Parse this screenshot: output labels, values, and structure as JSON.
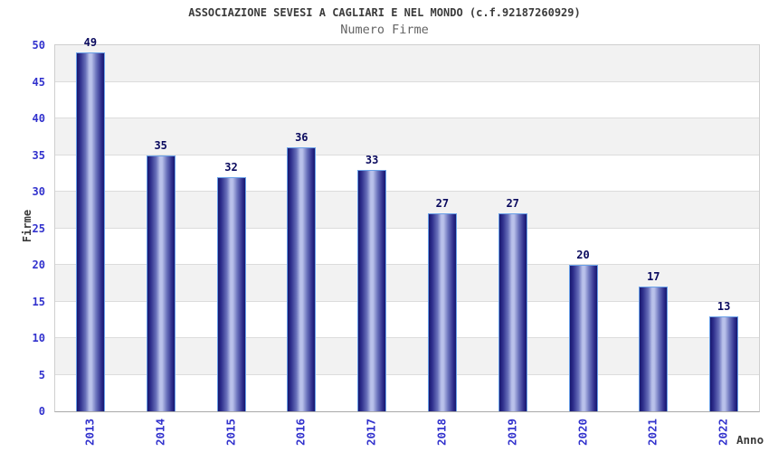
{
  "chart_data": {
    "type": "bar",
    "title": "ASSOCIAZIONE SEVESI A CAGLIARI E NEL MONDO (c.f.92187260929)",
    "subtitle": "Numero Firme",
    "categories": [
      "2013",
      "2014",
      "2015",
      "2016",
      "2017",
      "2018",
      "2019",
      "2020",
      "2021",
      "2022"
    ],
    "values": [
      49,
      35,
      32,
      36,
      33,
      27,
      27,
      20,
      17,
      13
    ],
    "xlabel": "Anno",
    "ylabel": "Firme",
    "ylim": [
      0,
      50
    ],
    "ytick_step": 5,
    "yticks": [
      0,
      5,
      10,
      15,
      20,
      25,
      30,
      35,
      40,
      45,
      50
    ],
    "grid": true,
    "legend": false,
    "banded_background": true,
    "colors": {
      "bar_dark": "#17176f",
      "bar_light": "#b9c1ea",
      "bar_border": "#69a0e8",
      "tick_color": "#3232cd",
      "value_color": "#0a0a5e",
      "title_color": "#3b3b3b",
      "subtitle_color": "#646464",
      "band_color": "#f2f2f2",
      "grid_color": "#dcdcdc"
    }
  }
}
